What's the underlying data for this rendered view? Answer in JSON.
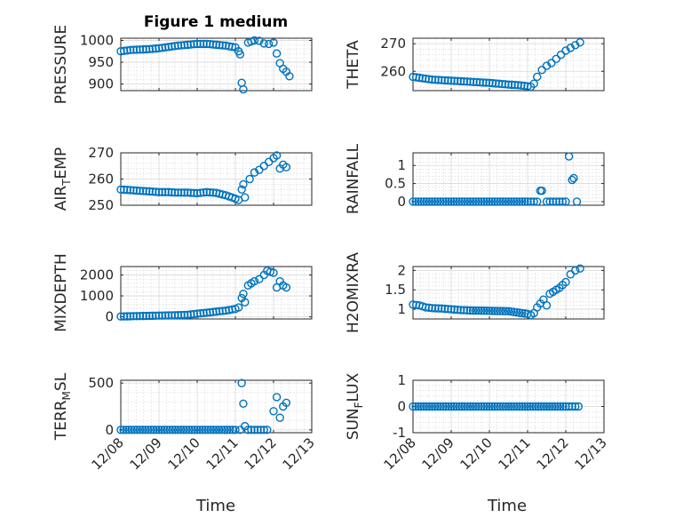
{
  "figure": {
    "title": "Figure 1 medium",
    "xlabel": "Time",
    "marker_color": "#0072bd"
  },
  "chart_data": [
    {
      "type": "scatter",
      "ylabel_main": "PRESSURE",
      "ylabel_sub": "",
      "ylim": [
        885,
        1005
      ],
      "yticks": [
        900,
        950,
        1000
      ],
      "xlim": [
        "12/08",
        "12/13"
      ],
      "xticks": [
        "12/08",
        "12/09",
        "12/10",
        "12/11",
        "12/12",
        "12/13"
      ],
      "points": [
        [
          "12/08 00:00",
          975
        ],
        [
          "12/08 06:00",
          978
        ],
        [
          "12/08 12:00",
          979
        ],
        [
          "12/08 18:00",
          980
        ],
        [
          "12/09 00:00",
          982
        ],
        [
          "12/09 06:00",
          985
        ],
        [
          "12/09 12:00",
          988
        ],
        [
          "12/09 18:00",
          990
        ],
        [
          "12/10 00:00",
          992
        ],
        [
          "12/10 06:00",
          992
        ],
        [
          "12/10 12:00",
          990
        ],
        [
          "12/10 18:00",
          988
        ],
        [
          "12/11 00:00",
          984
        ],
        [
          "12/11 02:00",
          975
        ],
        [
          "12/11 03:00",
          968
        ],
        [
          "12/11 04:00",
          903
        ],
        [
          "12/11 05:00",
          888
        ],
        [
          "12/11 08:00",
          995
        ],
        [
          "12/11 12:00",
          1000
        ],
        [
          "12/11 15:00",
          999
        ],
        [
          "12/11 18:00",
          993
        ],
        [
          "12/11 21:00",
          992
        ],
        [
          "12/12 00:00",
          995
        ],
        [
          "12/12 02:00",
          970
        ],
        [
          "12/12 04:00",
          948
        ],
        [
          "12/12 06:00",
          935
        ],
        [
          "12/12 08:00",
          928
        ],
        [
          "12/12 10:00",
          918
        ]
      ]
    },
    {
      "type": "scatter",
      "ylabel_main": "THETA",
      "ylabel_sub": "",
      "ylim": [
        253,
        272
      ],
      "yticks": [
        260,
        270
      ],
      "xlim": [
        "12/08",
        "12/13"
      ],
      "xticks": [
        "12/08",
        "12/09",
        "12/10",
        "12/11",
        "12/12",
        "12/13"
      ],
      "points": [
        [
          "12/08 00:00",
          258
        ],
        [
          "12/08 06:00",
          257.5
        ],
        [
          "12/08 12:00",
          257
        ],
        [
          "12/08 18:00",
          256.8
        ],
        [
          "12/09 00:00",
          256.6
        ],
        [
          "12/09 06:00",
          256.4
        ],
        [
          "12/09 12:00",
          256.2
        ],
        [
          "12/09 18:00",
          256
        ],
        [
          "12/10 00:00",
          255.8
        ],
        [
          "12/10 06:00",
          255.5
        ],
        [
          "12/10 12:00",
          255.2
        ],
        [
          "12/10 18:00",
          255
        ],
        [
          "12/11 00:00",
          254.6
        ],
        [
          "12/11 02:00",
          254.4
        ],
        [
          "12/11 04:00",
          255.5
        ],
        [
          "12/11 06:00",
          258
        ],
        [
          "12/11 09:00",
          260.5
        ],
        [
          "12/11 12:00",
          262
        ],
        [
          "12/11 15:00",
          263
        ],
        [
          "12/11 18:00",
          264.5
        ],
        [
          "12/11 21:00",
          266
        ],
        [
          "12/12 00:00",
          267.5
        ],
        [
          "12/12 03:00",
          268.5
        ],
        [
          "12/12 06:00",
          269.5
        ],
        [
          "12/12 09:00",
          270.5
        ]
      ]
    },
    {
      "type": "scatter",
      "ylabel_main": "AIR",
      "ylabel_sub": "T",
      "ylabel_rest": "EMP",
      "ylim": [
        250,
        270
      ],
      "yticks": [
        250,
        260,
        270
      ],
      "xlim": [
        "12/08",
        "12/13"
      ],
      "xticks": [
        "12/08",
        "12/09",
        "12/10",
        "12/11",
        "12/12",
        "12/13"
      ],
      "points": [
        [
          "12/08 00:00",
          256
        ],
        [
          "12/08 06:00",
          255.8
        ],
        [
          "12/08 12:00",
          255.5
        ],
        [
          "12/08 18:00",
          255.3
        ],
        [
          "12/09 00:00",
          255
        ],
        [
          "12/09 06:00",
          255
        ],
        [
          "12/09 12:00",
          254.8
        ],
        [
          "12/09 18:00",
          254.8
        ],
        [
          "12/10 00:00",
          254.6
        ],
        [
          "12/10 06:00",
          255
        ],
        [
          "12/10 12:00",
          254.7
        ],
        [
          "12/10 18:00",
          253.8
        ],
        [
          "12/11 00:00",
          252.5
        ],
        [
          "12/11 02:00",
          252
        ],
        [
          "12/11 04:00",
          256
        ],
        [
          "12/11 05:00",
          258
        ],
        [
          "12/11 06:00",
          253
        ],
        [
          "12/11 09:00",
          260
        ],
        [
          "12/11 12:00",
          262.5
        ],
        [
          "12/11 15:00",
          263.5
        ],
        [
          "12/11 18:00",
          265
        ],
        [
          "12/11 21:00",
          266.5
        ],
        [
          "12/12 00:00",
          268
        ],
        [
          "12/12 02:00",
          269
        ],
        [
          "12/12 04:00",
          264
        ],
        [
          "12/12 06:00",
          265.5
        ],
        [
          "12/12 08:00",
          264.5
        ]
      ]
    },
    {
      "type": "scatter",
      "ylabel_main": "RAINFALL",
      "ylabel_sub": "",
      "ylim": [
        -0.1,
        1.35
      ],
      "yticks": [
        0,
        0.5,
        1
      ],
      "xlim": [
        "12/08",
        "12/13"
      ],
      "xticks": [
        "12/08",
        "12/09",
        "12/10",
        "12/11",
        "12/12",
        "12/13"
      ],
      "points": [
        [
          "12/08 00:00",
          0
        ],
        [
          "12/08 12:00",
          0
        ],
        [
          "12/09 00:00",
          0
        ],
        [
          "12/09 12:00",
          0
        ],
        [
          "12/10 00:00",
          0
        ],
        [
          "12/10 12:00",
          0
        ],
        [
          "12/11 00:00",
          0
        ],
        [
          "12/11 06:00",
          0
        ],
        [
          "12/11 08:00",
          0.3
        ],
        [
          "12/11 09:00",
          0.3
        ],
        [
          "12/11 12:00",
          0
        ],
        [
          "12/11 18:00",
          0
        ],
        [
          "12/12 00:00",
          0
        ],
        [
          "12/12 02:00",
          1.25
        ],
        [
          "12/12 04:00",
          0.6
        ],
        [
          "12/12 05:00",
          0.65
        ],
        [
          "12/12 07:00",
          0
        ]
      ]
    },
    {
      "type": "scatter",
      "ylabel_main": "MIXDEPTH",
      "ylabel_sub": "",
      "ylim": [
        -100,
        2400
      ],
      "yticks": [
        0,
        1000,
        2000
      ],
      "xlim": [
        "12/08",
        "12/13"
      ],
      "xticks": [
        "12/08",
        "12/09",
        "12/10",
        "12/11",
        "12/12",
        "12/13"
      ],
      "points": [
        [
          "12/08 00:00",
          20
        ],
        [
          "12/08 06:00",
          30
        ],
        [
          "12/08 12:00",
          40
        ],
        [
          "12/08 18:00",
          50
        ],
        [
          "12/09 00:00",
          60
        ],
        [
          "12/09 06:00",
          70
        ],
        [
          "12/09 12:00",
          80
        ],
        [
          "12/09 18:00",
          100
        ],
        [
          "12/10 00:00",
          150
        ],
        [
          "12/10 06:00",
          200
        ],
        [
          "12/10 12:00",
          250
        ],
        [
          "12/10 18:00",
          300
        ],
        [
          "12/11 00:00",
          380
        ],
        [
          "12/11 02:00",
          450
        ],
        [
          "12/11 04:00",
          900
        ],
        [
          "12/11 05:00",
          1100
        ],
        [
          "12/11 06:00",
          700
        ],
        [
          "12/11 08:00",
          1500
        ],
        [
          "12/11 12:00",
          1700
        ],
        [
          "12/11 15:00",
          1800
        ],
        [
          "12/11 18:00",
          2000
        ],
        [
          "12/11 20:00",
          2200
        ],
        [
          "12/11 22:00",
          2150
        ],
        [
          "12/12 00:00",
          2100
        ],
        [
          "12/12 02:00",
          1400
        ],
        [
          "12/12 04:00",
          1700
        ],
        [
          "12/12 06:00",
          1500
        ],
        [
          "12/12 08:00",
          1400
        ]
      ]
    },
    {
      "type": "scatter",
      "ylabel_main": "H2OMIXRA",
      "ylabel_sub": "",
      "ylim": [
        0.75,
        2.1
      ],
      "yticks": [
        1,
        1.5,
        2
      ],
      "xlim": [
        "12/08",
        "12/13"
      ],
      "xticks": [
        "12/08",
        "12/09",
        "12/10",
        "12/11",
        "12/12",
        "12/13"
      ],
      "points": [
        [
          "12/08 00:00",
          1.12
        ],
        [
          "12/08 04:00",
          1.1
        ],
        [
          "12/08 08:00",
          1.05
        ],
        [
          "12/08 12:00",
          1.03
        ],
        [
          "12/08 18:00",
          1.02
        ],
        [
          "12/09 00:00",
          1.0
        ],
        [
          "12/09 06:00",
          0.98
        ],
        [
          "12/09 12:00",
          0.97
        ],
        [
          "12/10 00:00",
          0.96
        ],
        [
          "12/10 12:00",
          0.95
        ],
        [
          "12/11 00:00",
          0.88
        ],
        [
          "12/11 02:00",
          0.85
        ],
        [
          "12/11 04:00",
          0.9
        ],
        [
          "12/11 06:00",
          1.05
        ],
        [
          "12/11 08:00",
          1.15
        ],
        [
          "12/11 10:00",
          1.25
        ],
        [
          "12/11 12:00",
          1.1
        ],
        [
          "12/11 14:00",
          1.4
        ],
        [
          "12/11 16:00",
          1.45
        ],
        [
          "12/11 18:00",
          1.5
        ],
        [
          "12/11 20:00",
          1.55
        ],
        [
          "12/12 00:00",
          1.7
        ],
        [
          "12/12 03:00",
          1.9
        ],
        [
          "12/12 06:00",
          2.0
        ],
        [
          "12/12 09:00",
          2.05
        ]
      ]
    },
    {
      "type": "scatter",
      "ylabel_main": "TERR",
      "ylabel_sub": "M",
      "ylabel_rest": "SL",
      "ylim": [
        -30,
        530
      ],
      "yticks": [
        0,
        500
      ],
      "xlim": [
        "12/08",
        "12/13"
      ],
      "xticks": [
        "12/08",
        "12/09",
        "12/10",
        "12/11",
        "12/12",
        "12/13"
      ],
      "points": [
        [
          "12/08 00:00",
          0
        ],
        [
          "12/08 12:00",
          0
        ],
        [
          "12/09 00:00",
          0
        ],
        [
          "12/09 12:00",
          0
        ],
        [
          "12/10 00:00",
          0
        ],
        [
          "12/10 12:00",
          0
        ],
        [
          "12/11 00:00",
          0
        ],
        [
          "12/11 03:00",
          0
        ],
        [
          "12/11 04:00",
          500
        ],
        [
          "12/11 05:00",
          280
        ],
        [
          "12/11 06:00",
          40
        ],
        [
          "12/11 08:00",
          0
        ],
        [
          "12/11 14:00",
          0
        ],
        [
          "12/11 20:00",
          0
        ],
        [
          "12/12 00:00",
          200
        ],
        [
          "12/12 02:00",
          350
        ],
        [
          "12/12 04:00",
          130
        ],
        [
          "12/12 06:00",
          250
        ],
        [
          "12/12 08:00",
          290
        ]
      ]
    },
    {
      "type": "scatter",
      "ylabel_main": "SUN",
      "ylabel_sub": "F",
      "ylabel_rest": "LUX",
      "ylim": [
        -1,
        1
      ],
      "yticks": [
        -1,
        0,
        1
      ],
      "xlim": [
        "12/08",
        "12/13"
      ],
      "xticks": [
        "12/08",
        "12/09",
        "12/10",
        "12/11",
        "12/12",
        "12/13"
      ],
      "points": [
        [
          "12/08 00:00",
          0
        ],
        [
          "12/08 12:00",
          0
        ],
        [
          "12/09 00:00",
          0
        ],
        [
          "12/09 12:00",
          0
        ],
        [
          "12/10 00:00",
          0
        ],
        [
          "12/10 12:00",
          0
        ],
        [
          "12/11 00:00",
          0
        ],
        [
          "12/11 12:00",
          0
        ],
        [
          "12/12 00:00",
          0
        ],
        [
          "12/12 08:00",
          0
        ]
      ]
    }
  ]
}
